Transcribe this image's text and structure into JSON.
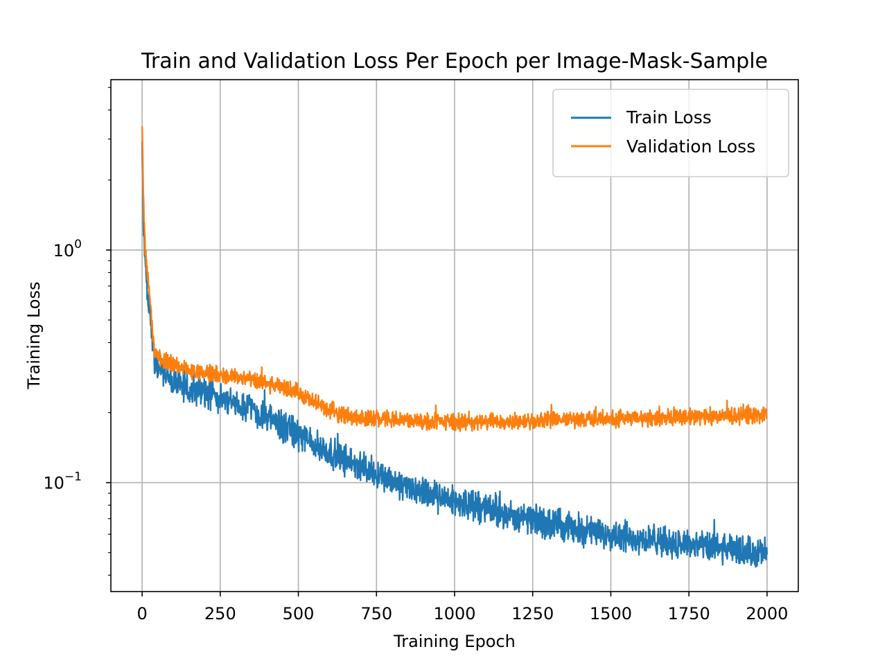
{
  "chart_data": {
    "type": "line",
    "title": "Train and Validation Loss Per Epoch per Image-Mask-Sample",
    "xlabel": "Training Epoch",
    "ylabel": "Training Loss",
    "xlim": [
      -100,
      2100
    ],
    "ylim": [
      0.034,
      5.4
    ],
    "yscale": "log",
    "grid": true,
    "legend_position": "top-right",
    "x_ticks": [
      0,
      250,
      500,
      750,
      1000,
      1250,
      1500,
      1750,
      2000
    ],
    "x_tick_labels": [
      "0",
      "250",
      "500",
      "750",
      "1000",
      "1250",
      "1500",
      "1750",
      "2000"
    ],
    "y_major_ticks": [
      0.1,
      1
    ],
    "y_tick_labels": [
      {
        "base": "10",
        "exp": "−1"
      },
      {
        "base": "10",
        "exp": "0"
      }
    ],
    "series": [
      {
        "name": "Train Loss",
        "color": "#1f77b4",
        "x": [
          0,
          5,
          10,
          15,
          20,
          25,
          30,
          35,
          40,
          50,
          60,
          80,
          100,
          125,
          150,
          175,
          200,
          250,
          300,
          350,
          400,
          450,
          500,
          550,
          600,
          650,
          700,
          750,
          800,
          850,
          900,
          950,
          1000,
          1050,
          1100,
          1150,
          1200,
          1250,
          1300,
          1350,
          1400,
          1450,
          1500,
          1550,
          1600,
          1650,
          1700,
          1750,
          1800,
          1850,
          1900,
          1950,
          2000
        ],
        "values": [
          2.8,
          1.2,
          0.85,
          0.72,
          0.62,
          0.53,
          0.45,
          0.38,
          0.34,
          0.32,
          0.3,
          0.285,
          0.27,
          0.262,
          0.255,
          0.248,
          0.242,
          0.232,
          0.22,
          0.205,
          0.19,
          0.175,
          0.16,
          0.146,
          0.135,
          0.125,
          0.117,
          0.11,
          0.102,
          0.096,
          0.09,
          0.086,
          0.083,
          0.08,
          0.077,
          0.074,
          0.071,
          0.069,
          0.067,
          0.065,
          0.063,
          0.061,
          0.06,
          0.059,
          0.057,
          0.056,
          0.055,
          0.054,
          0.053,
          0.052,
          0.051,
          0.05,
          0.05
        ],
        "noise": 0.09
      },
      {
        "name": "Validation Loss",
        "color": "#ff7f0e",
        "x": [
          0,
          5,
          10,
          15,
          20,
          25,
          30,
          35,
          40,
          50,
          60,
          80,
          100,
          125,
          150,
          175,
          200,
          250,
          300,
          350,
          400,
          450,
          500,
          550,
          600,
          650,
          700,
          750,
          800,
          850,
          900,
          950,
          1000,
          1050,
          1100,
          1150,
          1200,
          1250,
          1300,
          1350,
          1400,
          1450,
          1500,
          1550,
          1600,
          1650,
          1700,
          1750,
          1800,
          1850,
          1900,
          1950,
          2000
        ],
        "values": [
          3.5,
          1.5,
          1.0,
          0.85,
          0.75,
          0.62,
          0.5,
          0.4,
          0.37,
          0.35,
          0.34,
          0.33,
          0.32,
          0.31,
          0.305,
          0.3,
          0.295,
          0.29,
          0.285,
          0.275,
          0.265,
          0.255,
          0.245,
          0.22,
          0.205,
          0.195,
          0.19,
          0.188,
          0.186,
          0.185,
          0.184,
          0.183,
          0.182,
          0.182,
          0.183,
          0.183,
          0.184,
          0.184,
          0.185,
          0.186,
          0.187,
          0.188,
          0.188,
          0.189,
          0.19,
          0.19,
          0.191,
          0.192,
          0.193,
          0.193,
          0.194,
          0.195,
          0.195
        ],
        "noise": 0.05
      }
    ]
  }
}
